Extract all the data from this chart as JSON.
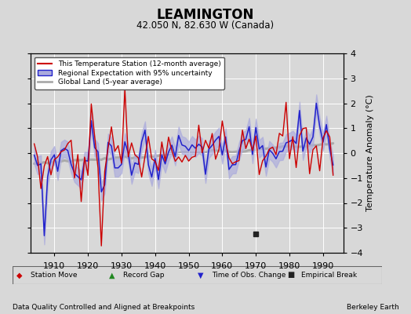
{
  "title": "LEAMINGTON",
  "subtitle": "42.050 N, 82.630 W (Canada)",
  "ylabel": "Temperature Anomaly (°C)",
  "xlabel_left": "Data Quality Controlled and Aligned at Breakpoints",
  "xlabel_right": "Berkeley Earth",
  "ylim": [
    -4,
    4
  ],
  "xlim": [
    1903,
    1996
  ],
  "xticks": [
    1910,
    1920,
    1930,
    1940,
    1950,
    1960,
    1970,
    1980,
    1990
  ],
  "yticks": [
    -4,
    -3,
    -2,
    -1,
    0,
    1,
    2,
    3,
    4
  ],
  "bg_color": "#d8d8d8",
  "plot_bg_color": "#d8d8d8",
  "grid_color": "#ffffff",
  "station_line_color": "#cc0000",
  "regional_line_color": "#2222cc",
  "regional_fill_color": "#aaaadd",
  "global_line_color": "#aaaaaa",
  "empirical_break_year": 1970,
  "empirical_break_value": -3.25,
  "legend_entries": [
    {
      "label": "This Temperature Station (12-month average)",
      "color": "#cc0000",
      "lw": 1.5
    },
    {
      "label": "Regional Expectation with 95% uncertainty",
      "color": "#2222cc",
      "lw": 1.2
    },
    {
      "label": "Global Land (5-year average)",
      "color": "#aaaaaa",
      "lw": 2.0
    }
  ],
  "marker_legend": [
    {
      "label": "Station Move",
      "color": "#cc0000",
      "marker": "D"
    },
    {
      "label": "Record Gap",
      "color": "#228822",
      "marker": "^"
    },
    {
      "label": "Time of Obs. Change",
      "color": "#2222cc",
      "marker": "v"
    },
    {
      "label": "Empirical Break",
      "color": "#222222",
      "marker": "s"
    }
  ]
}
